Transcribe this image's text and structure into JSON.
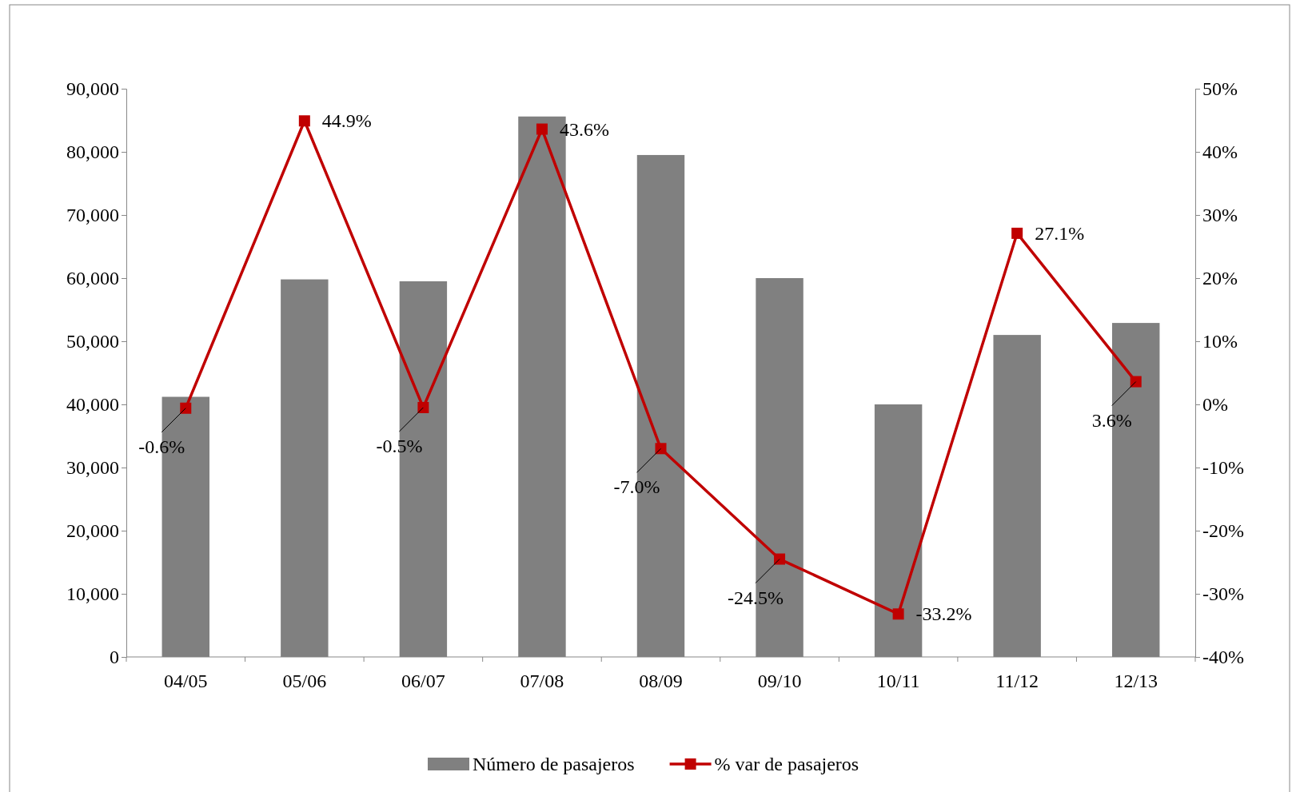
{
  "chart_data": {
    "type": "bar",
    "categories": [
      "04/05",
      "05/06",
      "06/07",
      "07/08",
      "08/09",
      "09/10",
      "10/11",
      "11/12",
      "12/13"
    ],
    "series": [
      {
        "name": "Número de pasajeros",
        "color": "#808080",
        "values": [
          41200,
          59800,
          59500,
          85600,
          79500,
          60000,
          40000,
          51000,
          52900
        ]
      },
      {
        "name": "% var de pasajeros",
        "type": "line",
        "axis": "y2",
        "color": "#c00000",
        "marker": "square",
        "values": [
          -0.6,
          44.9,
          -0.5,
          43.6,
          -7.0,
          -24.5,
          -33.2,
          27.1,
          3.6
        ],
        "value_labels": [
          "-0.6%",
          "44.9%",
          "-0.5%",
          "43.6%",
          "-7.0%",
          "-24.5%",
          "-33.2%",
          "27.1%",
          "3.6%"
        ]
      }
    ],
    "ylim": [
      0,
      90000
    ],
    "yticks": [
      {
        "value": 0,
        "label": "0"
      },
      {
        "value": 10000,
        "label": "10,000"
      },
      {
        "value": 20000,
        "label": "20,000"
      },
      {
        "value": 30000,
        "label": "30,000"
      },
      {
        "value": 40000,
        "label": "40,000"
      },
      {
        "value": 50000,
        "label": "50,000"
      },
      {
        "value": 60000,
        "label": "60,000"
      },
      {
        "value": 70000,
        "label": "70,000"
      },
      {
        "value": 80000,
        "label": "80,000"
      },
      {
        "value": 90000,
        "label": "90,000"
      }
    ],
    "y2lim": [
      -40,
      50
    ],
    "y2ticks": [
      {
        "value": -40,
        "label": "-40%"
      },
      {
        "value": -30,
        "label": "-30%"
      },
      {
        "value": -20,
        "label": "-20%"
      },
      {
        "value": -10,
        "label": "-10%"
      },
      {
        "value": 0,
        "label": "0%"
      },
      {
        "value": 10,
        "label": "10%"
      },
      {
        "value": 20,
        "label": "20%"
      },
      {
        "value": 30,
        "label": "30%"
      },
      {
        "value": 40,
        "label": "40%"
      },
      {
        "value": 50,
        "label": "50%"
      }
    ],
    "grid": false,
    "legend": "bottom"
  }
}
